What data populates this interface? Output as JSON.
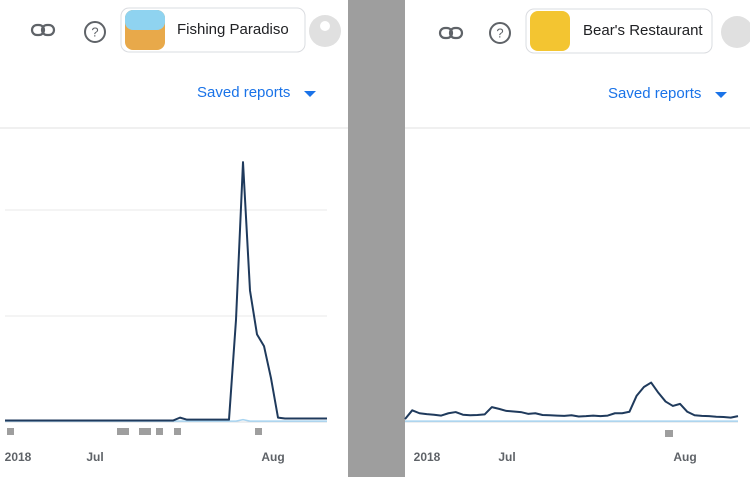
{
  "panels": [
    {
      "app_name": "Fishing Paradiso",
      "saved_reports": "Saved reports"
    },
    {
      "app_name": "Bear's Restaurant",
      "saved_reports": "Saved reports"
    }
  ],
  "chart_data": [
    {
      "type": "line",
      "x_labels": [
        "2018",
        "Jul",
        "Aug"
      ],
      "ylim": [
        0,
        100
      ],
      "series": [
        {
          "color": "#1f3a5c",
          "values": [
            0.5,
            0.5,
            0.5,
            0.5,
            0.5,
            0.5,
            0.5,
            0.5,
            0.5,
            0.5,
            0.5,
            0.5,
            0.5,
            0.5,
            0.5,
            0.5,
            0.5,
            0.5,
            0.5,
            0.5,
            0.5,
            0.5,
            0.5,
            0.5,
            0.5,
            1.5,
            0.8,
            0.8,
            0.8,
            0.8,
            0.8,
            0.8,
            0.8,
            35,
            89,
            45,
            30,
            26,
            15,
            1.5,
            1.2,
            1.2,
            1.2,
            1.2,
            1.2,
            1.2,
            1.2
          ]
        },
        {
          "color": "#a8d4f0",
          "values": [
            0.3,
            0.3,
            0.3,
            0.3,
            0.3,
            0.3,
            0.3,
            0.3,
            0.3,
            0.3,
            0.3,
            0.3,
            0.3,
            0.3,
            0.3,
            0.3,
            0.3,
            0.3,
            0.3,
            0.3,
            0.3,
            0.3,
            0.3,
            0.3,
            0.3,
            0.3,
            0.3,
            0.3,
            0.3,
            0.3,
            0.3,
            0.3,
            0.3,
            0.3,
            0.8,
            0.3,
            0.3,
            0.3,
            0.3,
            0.3,
            0.3,
            0.3,
            0.3,
            0.3,
            0.3,
            0.3,
            0.3
          ]
        }
      ]
    },
    {
      "type": "line",
      "x_labels": [
        "2018",
        "Jul",
        "Aug"
      ],
      "ylim": [
        0,
        100
      ],
      "series": [
        {
          "color": "#1f3a5c",
          "values": [
            1,
            4,
            3,
            2.7,
            2.5,
            2.2,
            3,
            3.4,
            2.5,
            2.3,
            2.4,
            2.6,
            5.1,
            4.5,
            3.8,
            3.6,
            3.4,
            2.8,
            3,
            2.4,
            2.3,
            2.2,
            2.1,
            2.3,
            1.9,
            2,
            2.2,
            2,
            2.2,
            3,
            3,
            3.5,
            9,
            12,
            13.5,
            10,
            7,
            5.5,
            6.2,
            3.5,
            2.3,
            2.1,
            2,
            1.8,
            1.7,
            1.5,
            2
          ]
        },
        {
          "color": "#a8d4f0",
          "values": [
            0.3,
            0.3,
            0.3,
            0.3,
            0.3,
            0.3,
            0.3,
            0.3,
            0.3,
            0.3,
            0.3,
            0.3,
            0.3,
            0.3,
            0.3,
            0.3,
            0.3,
            0.3,
            0.3,
            0.3,
            0.3,
            0.3,
            0.3,
            0.3,
            0.3,
            0.3,
            0.3,
            0.3,
            0.3,
            0.3,
            0.3,
            0.3,
            0.3,
            0.3,
            0.3,
            0.3,
            0.3,
            0.3,
            0.3,
            0.3,
            0.3,
            0.3,
            0.3,
            0.3,
            0.3,
            0.3,
            0.3
          ]
        }
      ]
    }
  ]
}
